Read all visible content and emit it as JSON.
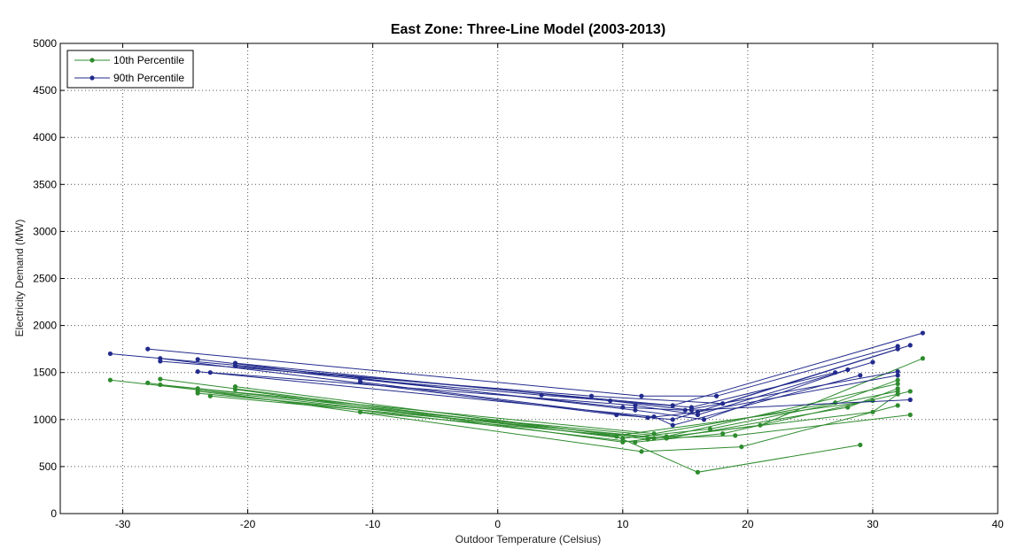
{
  "chart_data": {
    "type": "line",
    "title": "East Zone: Three-Line Model (2003-2013)",
    "xlabel": "Outdoor Temperature (Celsius)",
    "ylabel": "Electricity Demand (MW)",
    "xlim": [
      -35,
      40
    ],
    "ylim": [
      0,
      5000
    ],
    "xticks": [
      -30,
      -20,
      -10,
      0,
      10,
      20,
      30,
      40
    ],
    "yticks": [
      0,
      500,
      1000,
      1500,
      2000,
      2500,
      3000,
      3500,
      4000,
      4500,
      5000
    ],
    "grid": true,
    "legend_position": "top-left",
    "series": [
      {
        "name": "10th Percentile",
        "color": "#2e8b2e",
        "lines": [
          [
            [
              -31,
              1420
            ],
            [
              9.5,
              820
            ],
            [
              16,
              440
            ],
            [
              29,
              730
            ]
          ],
          [
            [
              -28,
              1390
            ],
            [
              11.5,
              660
            ],
            [
              19.5,
              710
            ],
            [
              32,
              1150
            ]
          ],
          [
            [
              -27,
              1430
            ],
            [
              10,
              800
            ],
            [
              17,
              900
            ],
            [
              32,
              1300
            ]
          ],
          [
            [
              -24,
              1330
            ],
            [
              12.5,
              800
            ],
            [
              19,
              830
            ],
            [
              33,
              1050
            ]
          ],
          [
            [
              -24,
              1300
            ],
            [
              11,
              760
            ],
            [
              18,
              850
            ],
            [
              33,
              1300
            ]
          ],
          [
            [
              -21,
              1350
            ],
            [
              12,
              790
            ],
            [
              21,
              940
            ],
            [
              34,
              1650
            ]
          ],
          [
            [
              -27,
              1370
            ],
            [
              12.5,
              850
            ],
            [
              27,
              1180
            ],
            [
              32,
              1420
            ]
          ],
          [
            [
              -23,
              1250
            ],
            [
              13.5,
              800
            ],
            [
              28,
              1130
            ],
            [
              32,
              1330
            ]
          ],
          [
            [
              -21,
              1320
            ],
            [
              10,
              760
            ],
            [
              30,
              1080
            ],
            [
              32,
              1270
            ]
          ],
          [
            [
              -11,
              1080
            ],
            [
              9.5,
              830
            ],
            [
              30,
              1200
            ]
          ],
          [
            [
              -24,
              1280
            ],
            [
              13.5,
              820
            ],
            [
              32,
              1380
            ]
          ]
        ]
      },
      {
        "name": "90th Percentile",
        "color": "#222b8c",
        "lines": [
          [
            [
              -31,
              1700
            ],
            [
              14,
              1150
            ],
            [
              34,
              1920
            ]
          ],
          [
            [
              -28,
              1750
            ],
            [
              11.5,
              1250
            ],
            [
              17.5,
              1250
            ],
            [
              32,
              1780
            ]
          ],
          [
            [
              -27,
              1650
            ],
            [
              9.5,
              1050
            ],
            [
              14,
              1000
            ],
            [
              33,
              1790
            ]
          ],
          [
            [
              -27,
              1620
            ],
            [
              7.5,
              1250
            ],
            [
              18,
              1170
            ],
            [
              32,
              1750
            ]
          ],
          [
            [
              -24,
              1640
            ],
            [
              11,
              1100
            ],
            [
              16.5,
              1000
            ],
            [
              28,
              1530
            ]
          ],
          [
            [
              -24,
              1510
            ],
            [
              12.5,
              1030
            ],
            [
              14,
              940
            ],
            [
              29,
              1470
            ]
          ],
          [
            [
              -21,
              1600
            ],
            [
              9,
              1200
            ],
            [
              15.5,
              1100
            ],
            [
              33,
              1210
            ]
          ],
          [
            [
              -21,
              1570
            ],
            [
              10,
              1130
            ],
            [
              15,
              1100
            ],
            [
              32,
              1510
            ]
          ],
          [
            [
              -23,
              1500
            ],
            [
              11,
              1150
            ],
            [
              16,
              1050
            ],
            [
              30,
              1610
            ]
          ],
          [
            [
              -11,
              1430
            ],
            [
              3.5,
              1260
            ],
            [
              15.5,
              1130
            ],
            [
              27,
              1500
            ]
          ],
          [
            [
              -11,
              1400
            ],
            [
              12,
              1020
            ],
            [
              16,
              1080
            ],
            [
              32,
              1470
            ]
          ]
        ]
      }
    ]
  }
}
